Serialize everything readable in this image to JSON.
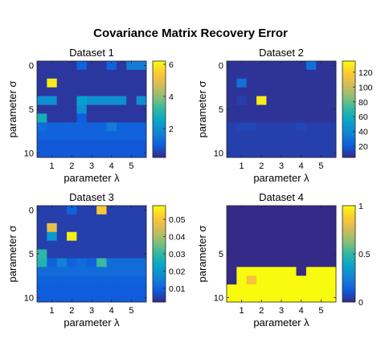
{
  "figure": {
    "title": "Covariance Matrix Recovery Error"
  },
  "colors": {
    "parula": [
      "#352a87",
      "#0f5cdd",
      "#1481d6",
      "#06a4ca",
      "#2eb7a4",
      "#87bf77",
      "#d1bb59",
      "#fec832",
      "#f9fb0e"
    ]
  },
  "chart_data": [
    {
      "type": "heatmap",
      "title": "Dataset 1",
      "xlabel": "parameter λ",
      "ylabel": "parameter σ",
      "xticks": [
        "1",
        "2",
        "3",
        "4",
        "5"
      ],
      "yticks": [
        "0",
        "5",
        "10"
      ],
      "nx": 11,
      "ny": 11,
      "clim": [
        0.2,
        6.2
      ],
      "cbticks": [
        2,
        4,
        6
      ],
      "cblabels": [
        "2",
        "4",
        "6"
      ],
      "grid": false,
      "values": [
        [
          0.4,
          0.4,
          0.4,
          0.4,
          1.1,
          0.4,
          0.4,
          1.1,
          0.4,
          1.6,
          1.6
        ],
        [
          0.4,
          0.4,
          0.4,
          0.4,
          0.4,
          0.4,
          0.4,
          0.4,
          0.4,
          0.4,
          0.4
        ],
        [
          0.4,
          6.0,
          0.4,
          0.4,
          0.4,
          0.4,
          0.4,
          0.4,
          0.4,
          0.4,
          0.4
        ],
        [
          0.4,
          0.4,
          0.4,
          0.4,
          0.4,
          0.4,
          0.4,
          0.4,
          0.4,
          0.4,
          0.4
        ],
        [
          2.0,
          2.0,
          0.4,
          0.4,
          2.4,
          2.0,
          2.0,
          2.0,
          2.0,
          0.4,
          2.0
        ],
        [
          0.4,
          0.4,
          0.4,
          0.4,
          2.0,
          0.4,
          0.4,
          0.4,
          0.4,
          0.4,
          0.4
        ],
        [
          2.8,
          0.4,
          0.4,
          0.4,
          1.0,
          0.4,
          0.4,
          0.4,
          0.4,
          0.4,
          0.4
        ],
        [
          1.3,
          1.1,
          1.1,
          1.1,
          1.1,
          1.1,
          1.1,
          1.6,
          1.1,
          1.1,
          1.1
        ],
        [
          1.1,
          1.1,
          1.1,
          1.1,
          1.1,
          1.1,
          1.1,
          1.1,
          1.1,
          1.1,
          1.1
        ],
        [
          0.9,
          0.9,
          0.9,
          0.9,
          0.9,
          0.9,
          0.9,
          0.9,
          0.9,
          0.9,
          0.9
        ],
        [
          0.9,
          0.9,
          0.9,
          0.9,
          0.9,
          0.9,
          0.9,
          0.9,
          0.9,
          0.9,
          0.9
        ]
      ]
    },
    {
      "type": "heatmap",
      "title": "Dataset 2",
      "xlabel": "parameter λ",
      "ylabel": "parameter σ",
      "xticks": [
        "1",
        "2",
        "3",
        "4",
        "5"
      ],
      "yticks": [
        "0",
        "5",
        "10"
      ],
      "nx": 11,
      "ny": 11,
      "clim": [
        5,
        135
      ],
      "cbticks": [
        20,
        40,
        60,
        80,
        100,
        120
      ],
      "cblabels": [
        "20",
        "40",
        "60",
        "80",
        "100",
        "120"
      ],
      "grid": false,
      "values": [
        [
          8,
          8,
          8,
          8,
          8,
          8,
          8,
          8,
          30,
          8,
          8
        ],
        [
          8,
          8,
          8,
          8,
          8,
          8,
          8,
          8,
          8,
          8,
          8
        ],
        [
          8,
          30,
          8,
          8,
          8,
          8,
          8,
          8,
          8,
          8,
          8
        ],
        [
          8,
          8,
          8,
          8,
          8,
          8,
          8,
          8,
          8,
          8,
          8
        ],
        [
          8,
          12,
          8,
          130,
          8,
          8,
          8,
          8,
          8,
          8,
          8
        ],
        [
          8,
          8,
          8,
          8,
          8,
          8,
          8,
          8,
          8,
          8,
          8
        ],
        [
          8,
          8,
          8,
          8,
          8,
          8,
          8,
          8,
          8,
          8,
          8
        ],
        [
          12,
          14,
          14,
          12,
          12,
          12,
          12,
          14,
          12,
          12,
          12
        ],
        [
          12,
          12,
          12,
          12,
          12,
          12,
          12,
          12,
          12,
          12,
          12
        ],
        [
          12,
          12,
          12,
          12,
          12,
          12,
          12,
          12,
          12,
          12,
          12
        ],
        [
          12,
          12,
          12,
          12,
          12,
          12,
          12,
          12,
          12,
          12,
          12
        ]
      ]
    },
    {
      "type": "heatmap",
      "title": "Dataset 3",
      "xlabel": "parameter λ",
      "ylabel": "parameter σ",
      "xticks": [
        "1",
        "2",
        "3",
        "4",
        "5"
      ],
      "yticks": [
        "0",
        "5",
        "10"
      ],
      "nx": 11,
      "ny": 11,
      "clim": [
        0.002,
        0.058
      ],
      "cbticks": [
        0.01,
        0.02,
        0.03,
        0.04,
        0.05
      ],
      "cblabels": [
        "0.01",
        "0.02",
        "0.03",
        "0.04",
        "0.05"
      ],
      "grid": false,
      "values": [
        [
          0.005,
          0.005,
          0.005,
          0.01,
          0.005,
          0.005,
          0.05,
          0.005,
          0.005,
          0.005,
          0.005
        ],
        [
          0.005,
          0.005,
          0.005,
          0.005,
          0.005,
          0.005,
          0.005,
          0.005,
          0.005,
          0.005,
          0.005
        ],
        [
          0.005,
          0.047,
          0.005,
          0.005,
          0.005,
          0.005,
          0.005,
          0.005,
          0.005,
          0.005,
          0.005
        ],
        [
          0.005,
          0.021,
          0.005,
          0.056,
          0.005,
          0.005,
          0.005,
          0.005,
          0.005,
          0.005,
          0.005
        ],
        [
          0.005,
          0.005,
          0.005,
          0.005,
          0.005,
          0.005,
          0.005,
          0.005,
          0.005,
          0.005,
          0.005
        ],
        [
          0.03,
          0.005,
          0.005,
          0.005,
          0.005,
          0.005,
          0.005,
          0.005,
          0.005,
          0.005,
          0.005
        ],
        [
          0.028,
          0.01,
          0.016,
          0.01,
          0.012,
          0.01,
          0.031,
          0.012,
          0.012,
          0.012,
          0.012
        ],
        [
          0.012,
          0.012,
          0.012,
          0.012,
          0.012,
          0.012,
          0.012,
          0.012,
          0.012,
          0.012,
          0.012
        ],
        [
          0.01,
          0.01,
          0.01,
          0.01,
          0.01,
          0.01,
          0.01,
          0.01,
          0.01,
          0.01,
          0.01
        ],
        [
          0.009,
          0.009,
          0.009,
          0.009,
          0.009,
          0.009,
          0.009,
          0.009,
          0.009,
          0.009,
          0.009
        ],
        [
          0.009,
          0.009,
          0.009,
          0.009,
          0.009,
          0.009,
          0.009,
          0.009,
          0.009,
          0.009,
          0.009
        ]
      ]
    },
    {
      "type": "heatmap",
      "title": "Dataset 4",
      "xlabel": "parameter λ",
      "ylabel": "parameter σ",
      "xticks": [
        "1",
        "2",
        "3",
        "4",
        "5"
      ],
      "yticks": [
        "5",
        "10"
      ],
      "nx": 11,
      "ny": 11,
      "clim": [
        0,
        1
      ],
      "cbticks": [
        0,
        0.5,
        1
      ],
      "cblabels": [
        "0",
        "0.5",
        "1"
      ],
      "grid": false,
      "values": [
        [
          0,
          0,
          0,
          0,
          0,
          0,
          0,
          0,
          0,
          0,
          0
        ],
        [
          0,
          0,
          0,
          0,
          0,
          0,
          0,
          0,
          0,
          0,
          0
        ],
        [
          0,
          0,
          0,
          0,
          0,
          0,
          0,
          0,
          0,
          0,
          0
        ],
        [
          0,
          0,
          0,
          0,
          0,
          0,
          0,
          0,
          0,
          0,
          0
        ],
        [
          0,
          0,
          0,
          0,
          0,
          0,
          0,
          0,
          0,
          0,
          0
        ],
        [
          0,
          0,
          0,
          0,
          0,
          0,
          0,
          0,
          0,
          0,
          0
        ],
        [
          0,
          0,
          0,
          0,
          0,
          0,
          0,
          0,
          0,
          0,
          0
        ],
        [
          0,
          1,
          1,
          1,
          1,
          1,
          1,
          0,
          1,
          1,
          1
        ],
        [
          0,
          1,
          0.85,
          1,
          1,
          1,
          1,
          1,
          1,
          1,
          1
        ],
        [
          1,
          1,
          1,
          1,
          1,
          1,
          1,
          1,
          1,
          1,
          1
        ],
        [
          1,
          1,
          1,
          1,
          1,
          1,
          1,
          1,
          1,
          1,
          1
        ]
      ]
    }
  ]
}
